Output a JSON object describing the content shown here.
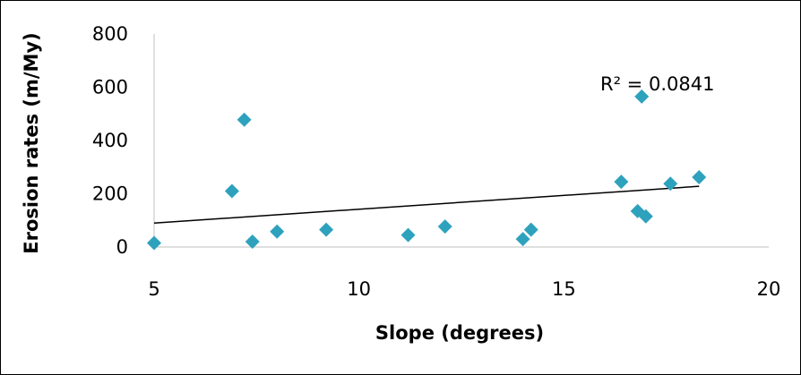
{
  "chart_data": {
    "type": "scatter",
    "xlabel": "Slope (degrees)",
    "ylabel": "Erosion rates (m/My)",
    "xlim": [
      5,
      20
    ],
    "ylim": [
      0,
      800
    ],
    "x_ticks": [
      5,
      10,
      15,
      20
    ],
    "y_ticks": [
      0,
      200,
      400,
      600,
      800
    ],
    "grid": false,
    "legend": "none",
    "marker": "diamond",
    "marker_color": "#2EA2BD",
    "trendline": {
      "type": "linear",
      "color": "#000000",
      "x": [
        5.0,
        18.3
      ],
      "y": [
        90,
        228
      ]
    },
    "annotation": "R² = 0.0841",
    "points": [
      {
        "x": 5.0,
        "y": 15
      },
      {
        "x": 6.9,
        "y": 210
      },
      {
        "x": 7.2,
        "y": 478
      },
      {
        "x": 7.4,
        "y": 20
      },
      {
        "x": 8.0,
        "y": 58
      },
      {
        "x": 9.2,
        "y": 65
      },
      {
        "x": 11.2,
        "y": 45
      },
      {
        "x": 12.1,
        "y": 77
      },
      {
        "x": 14.0,
        "y": 30
      },
      {
        "x": 14.2,
        "y": 65
      },
      {
        "x": 16.4,
        "y": 245
      },
      {
        "x": 16.8,
        "y": 135
      },
      {
        "x": 16.9,
        "y": 565
      },
      {
        "x": 17.0,
        "y": 115
      },
      {
        "x": 17.6,
        "y": 238
      },
      {
        "x": 18.3,
        "y": 262
      }
    ]
  }
}
